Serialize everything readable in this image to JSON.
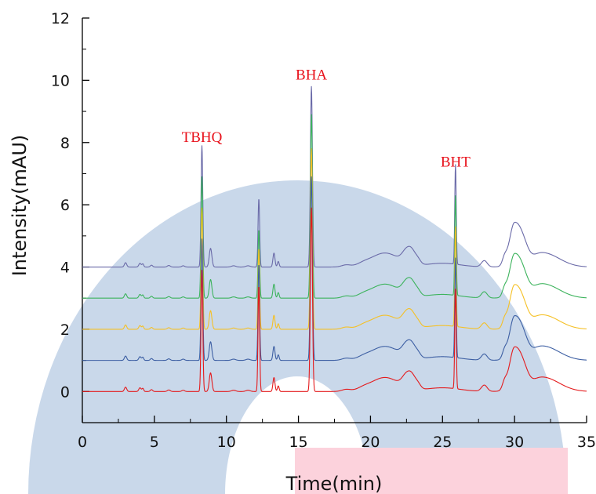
{
  "chart_data": {
    "type": "line",
    "title": "",
    "xlabel": "Time(min)",
    "ylabel": "Intensity(mAU)",
    "xlim": [
      0,
      35
    ],
    "ylim": [
      -1,
      12
    ],
    "xticks": [
      0,
      5,
      10,
      15,
      20,
      25,
      30,
      35
    ],
    "yticks": [
      0,
      2,
      4,
      6,
      8,
      10,
      12
    ],
    "grid": false,
    "legend": "none",
    "background": {
      "watermark_color": "#c9d8ea",
      "band_color": "#fcd2dc"
    },
    "annotations": [
      {
        "text": "TBHQ",
        "x": 8.3,
        "y": 8.0,
        "color": "#e8111b"
      },
      {
        "text": "BHA",
        "x": 15.9,
        "y": 10.0,
        "color": "#e8111b"
      },
      {
        "text": "BHT",
        "x": 25.9,
        "y": 7.2,
        "color": "#e8111b"
      }
    ],
    "series": [
      {
        "color": "#e41a1c",
        "baseline": 0.0,
        "peaks": {
          "tbhq": 3.9,
          "p12": 3.4,
          "bha": 5.9,
          "bht": 3.2
        }
      },
      {
        "color": "#3d5fa3",
        "baseline": 1.0,
        "peaks": {
          "tbhq": 4.9,
          "p12": 4.1,
          "bha": 6.9,
          "bht": 4.2
        }
      },
      {
        "color": "#f5c024",
        "baseline": 2.0,
        "peaks": {
          "tbhq": 5.9,
          "p12": 4.6,
          "bha": 7.8,
          "bht": 5.2
        }
      },
      {
        "color": "#3cb35c",
        "baseline": 3.0,
        "peaks": {
          "tbhq": 6.9,
          "p12": 5.2,
          "bha": 8.9,
          "bht": 6.2
        }
      },
      {
        "color": "#6a6aa8",
        "baseline": 4.0,
        "peaks": {
          "tbhq": 7.9,
          "p12": 6.2,
          "bha": 9.8,
          "bht": 7.2
        }
      }
    ]
  }
}
